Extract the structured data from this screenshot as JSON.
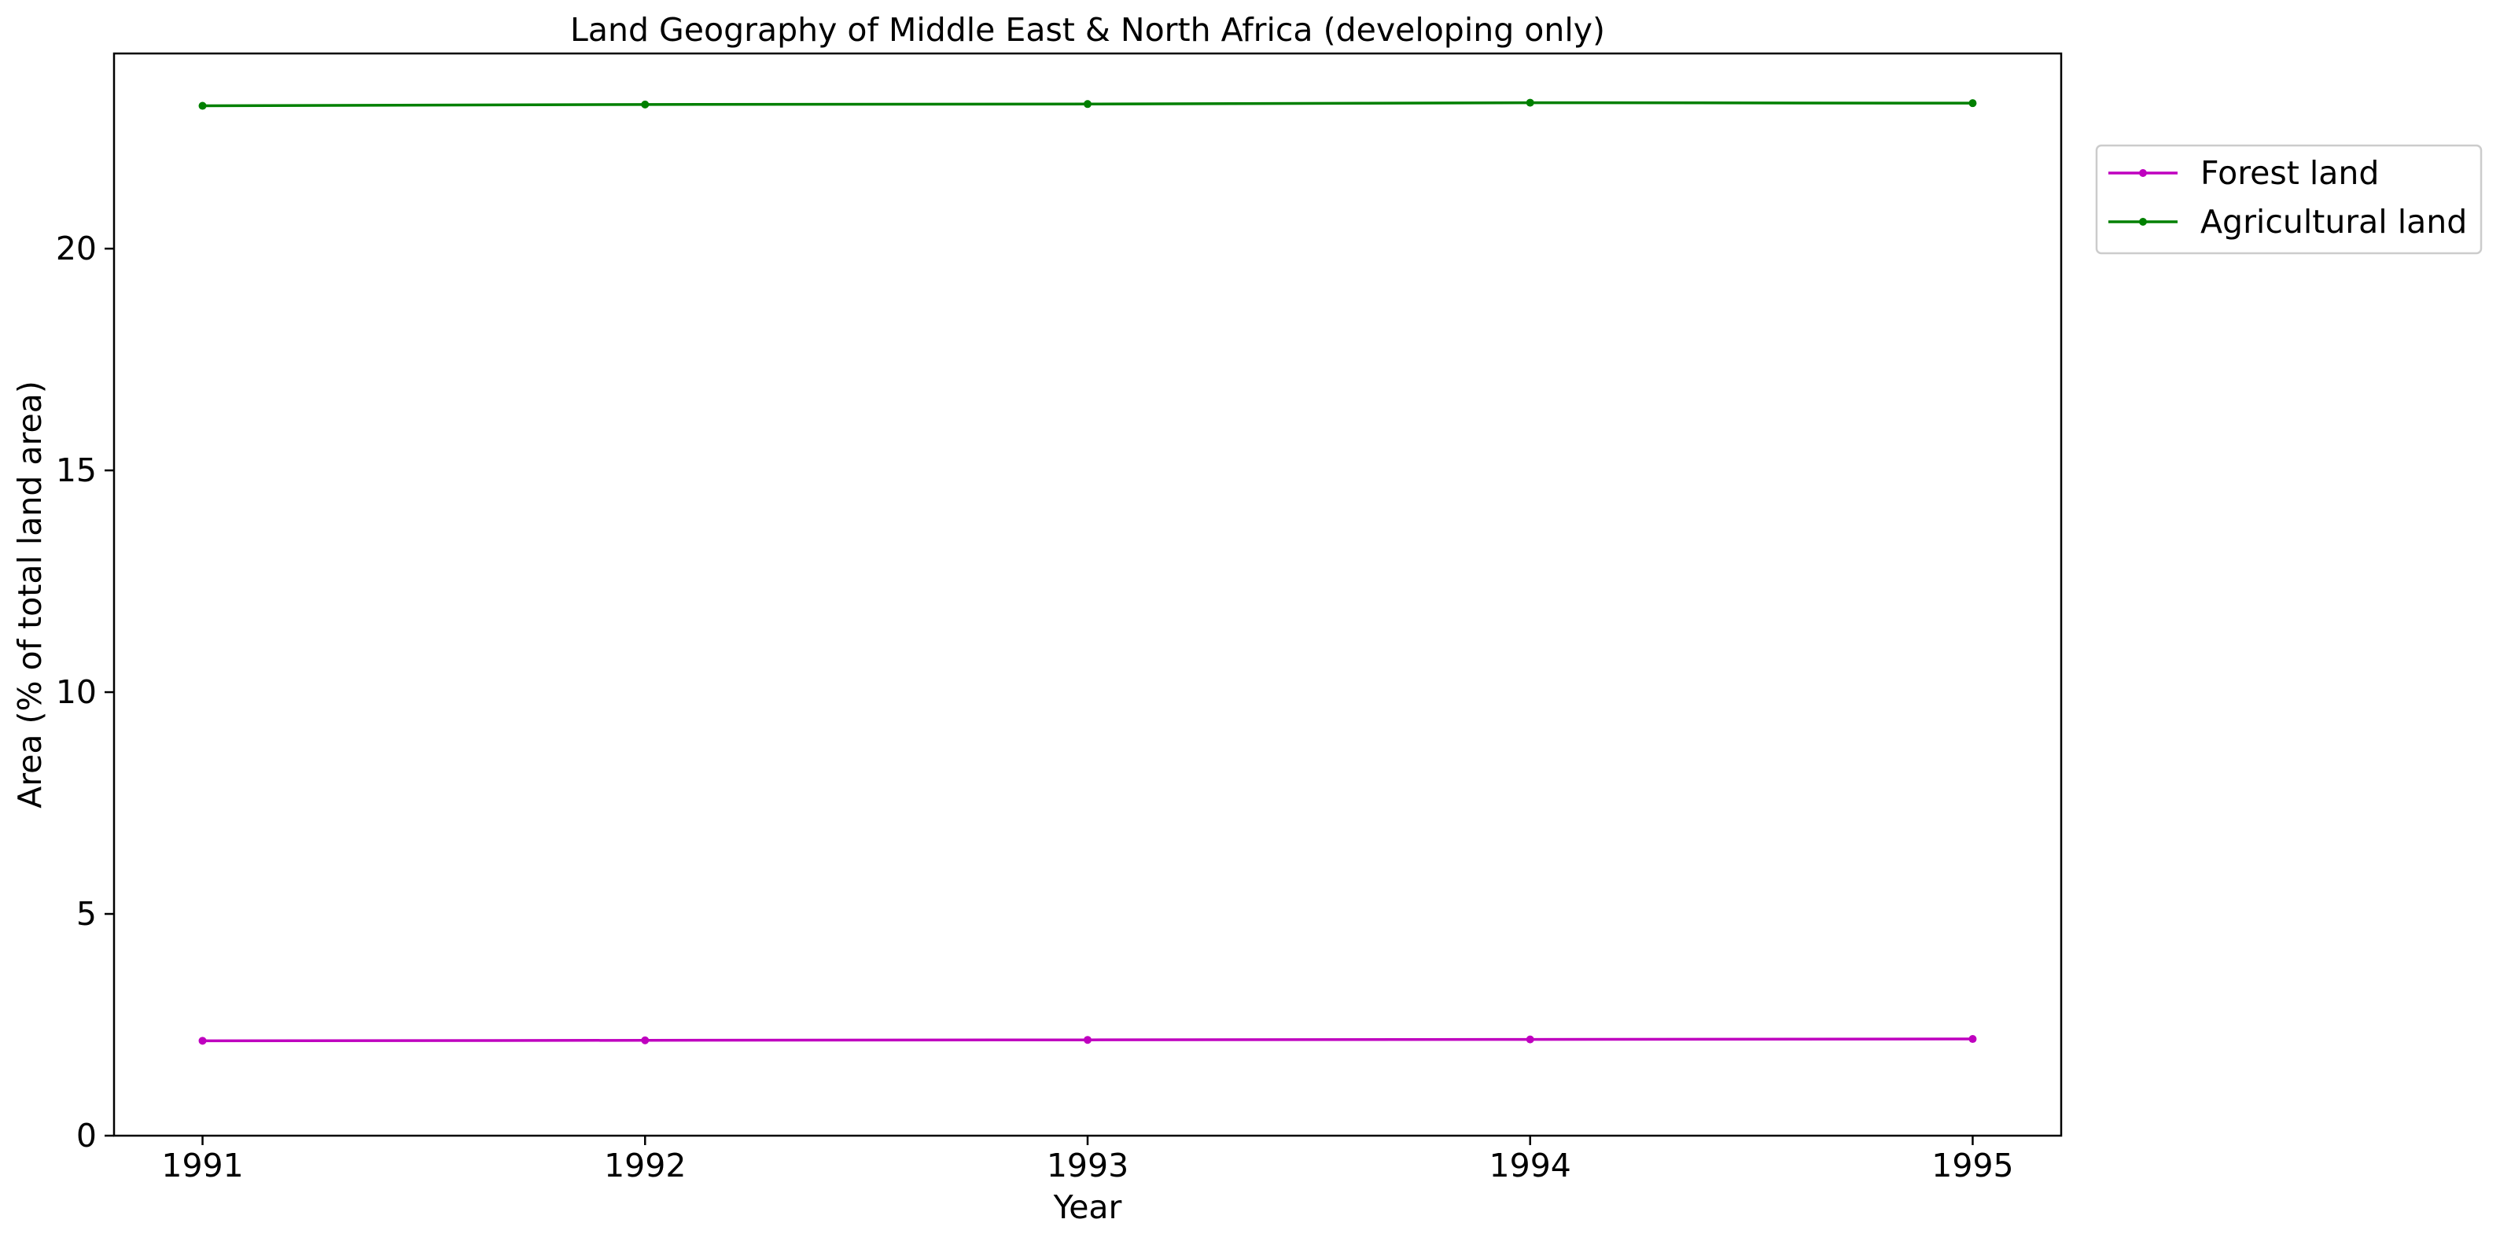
{
  "chart_data": {
    "type": "line",
    "title": "Land Geography of Middle East & North Africa (developing only)",
    "xlabel": "Year",
    "ylabel": "Area (% of total land area)",
    "x": [
      "1991",
      "1992",
      "1993",
      "1994",
      "1995"
    ],
    "xlim": [
      1990.8,
      1995.2
    ],
    "ylim": [
      0,
      24.4
    ],
    "yticks": [
      "0",
      "5",
      "10",
      "15",
      "20"
    ],
    "grid": false,
    "legend_position": "right-outside-top",
    "series": [
      {
        "name": "Forest land",
        "color": "#bf00bf",
        "values": [
          2.14,
          2.15,
          2.16,
          2.17,
          2.18
        ]
      },
      {
        "name": "Agricultural land",
        "color": "#008000",
        "values": [
          23.22,
          23.25,
          23.26,
          23.29,
          23.28
        ]
      }
    ]
  }
}
